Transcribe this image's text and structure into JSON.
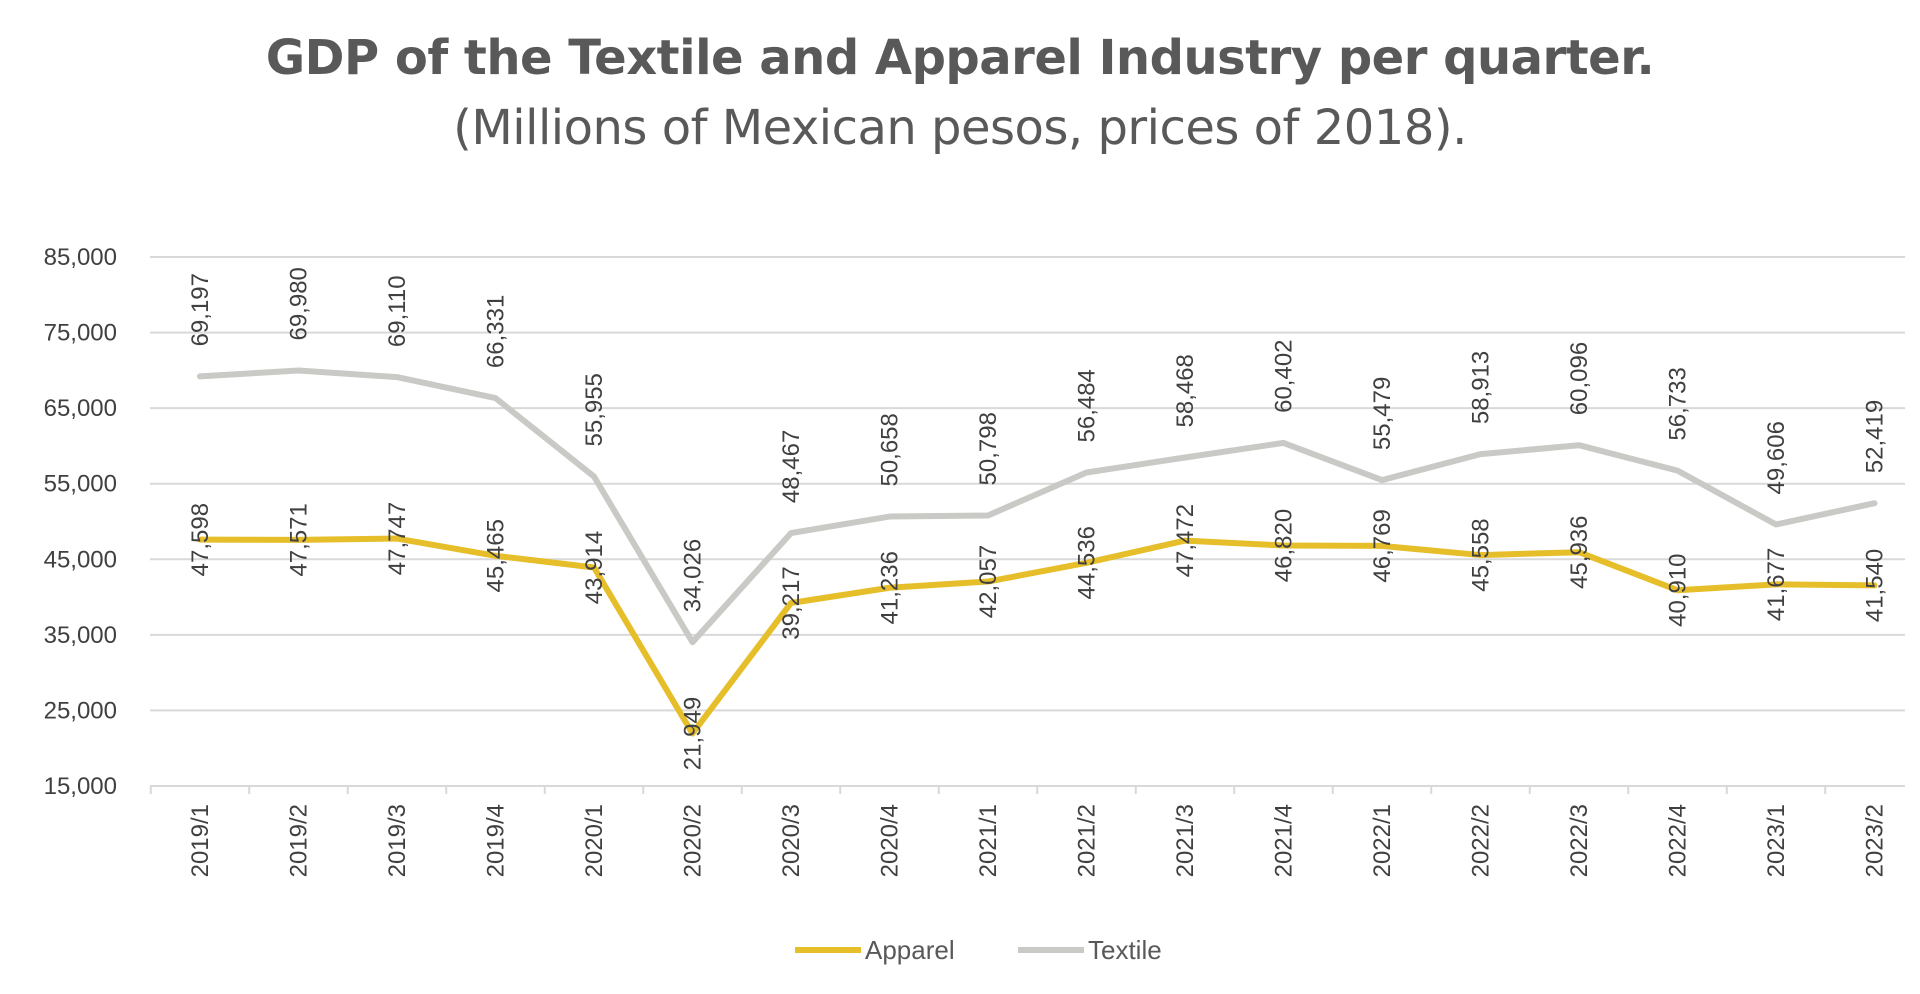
{
  "chart_data": {
    "type": "line",
    "title": "GDP of the Textile and Apparel Industry per quarter.",
    "subtitle": "(Millions of Mexican pesos, prices of 2018).",
    "categories": [
      "2019/1",
      "2019/2",
      "2019/3",
      "2019/4",
      "2020/1",
      "2020/2",
      "2020/3",
      "2020/4",
      "2021/1",
      "2021/2",
      "2021/3",
      "2021/4",
      "2022/1",
      "2022/2",
      "2022/3",
      "2022/4",
      "2023/1",
      "2023/2"
    ],
    "y_ticks": [
      "15,000",
      "25,000",
      "35,000",
      "45,000",
      "55,000",
      "65,000",
      "75,000",
      "85,000"
    ],
    "ylim": [
      15000,
      85000
    ],
    "grid": true,
    "legend_position": "bottom",
    "series": [
      {
        "name": "Apparel",
        "color": "#E6BE2A",
        "values": [
          47598,
          47571,
          47747,
          45465,
          43914,
          21949,
          39217,
          41236,
          42057,
          44536,
          47472,
          46820,
          46769,
          45558,
          45936,
          40910,
          41677,
          41540
        ],
        "labels": [
          "47,598",
          "47,571",
          "47,747",
          "45,465",
          "43,914",
          "21,949",
          "39,217",
          "41,236",
          "42,057",
          "44,536",
          "47,472",
          "46,820",
          "46,769",
          "45,558",
          "45,936",
          "40,910",
          "41,677",
          "41,540"
        ]
      },
      {
        "name": "Textile",
        "color": "#C9C9C6",
        "values": [
          69197,
          69980,
          69110,
          66331,
          55955,
          34026,
          48467,
          50658,
          50798,
          56484,
          58468,
          60402,
          55479,
          58913,
          60096,
          56733,
          49606,
          52419
        ],
        "labels": [
          "69,197",
          "69,980",
          "69,110",
          "66,331",
          "55,955",
          "34,026",
          "48,467",
          "50,658",
          "50,798",
          "56,484",
          "58,468",
          "60,402",
          "55,479",
          "58,913",
          "60,096",
          "56,733",
          "49,606",
          "52,419"
        ]
      }
    ]
  }
}
